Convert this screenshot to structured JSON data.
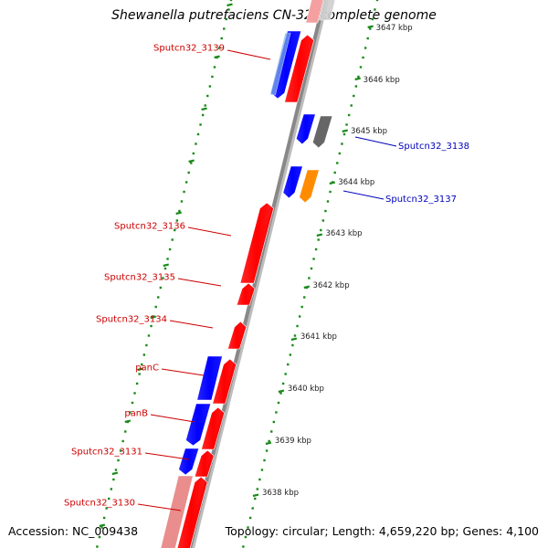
{
  "title": "Shewanella putrefaciens CN-32, complete genome",
  "footer": {
    "accession": "Accession: NC_009438",
    "topology": "Topology: circular; Length: 4,659,220 bp; Genes: 4,100"
  },
  "colors": {
    "forward_gene": "#ff0000",
    "reverse_gene": "#0000ff",
    "reverse_label": "#0000bb",
    "forward_label": "#cc0000",
    "tick": "#1a8a1a",
    "backbone": "#888888",
    "gray_gene": "#666666",
    "orange_gene": "#ff8c00"
  },
  "ticks": [
    {
      "label": "3647 kbp"
    },
    {
      "label": "3646 kbp"
    },
    {
      "label": "3645 kbp"
    },
    {
      "label": "3644 kbp"
    },
    {
      "label": "3643 kbp"
    },
    {
      "label": "3642 kbp"
    },
    {
      "label": "3641 kbp"
    },
    {
      "label": "3640 kbp"
    },
    {
      "label": "3639 kbp"
    },
    {
      "label": "3638 kbp"
    }
  ],
  "left_labels": [
    {
      "name": "Sputcn32_3139"
    },
    {
      "name": "Sputcn32_3136"
    },
    {
      "name": "Sputcn32_3135"
    },
    {
      "name": "Sputcn32_3134"
    },
    {
      "name": "panC"
    },
    {
      "name": "panB"
    },
    {
      "name": "Sputcn32_3131"
    },
    {
      "name": "Sputcn32_3130"
    }
  ],
  "right_labels": [
    {
      "name": "Sputcn32_3138"
    },
    {
      "name": "Sputcn32_3137"
    }
  ]
}
